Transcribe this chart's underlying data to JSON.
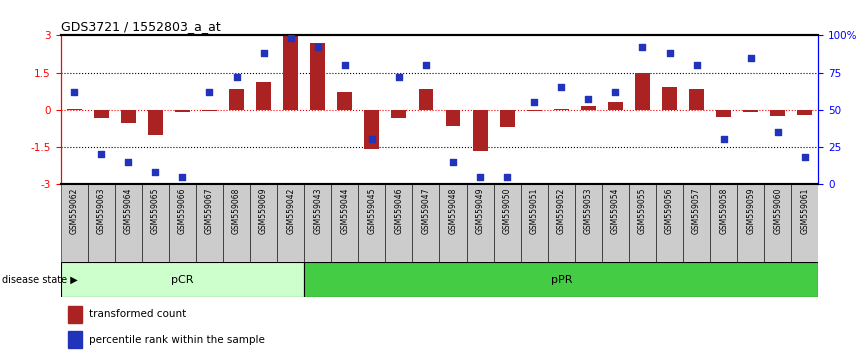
{
  "title": "GDS3721 / 1552803_a_at",
  "samples": [
    "GSM559062",
    "GSM559063",
    "GSM559064",
    "GSM559065",
    "GSM559066",
    "GSM559067",
    "GSM559068",
    "GSM559069",
    "GSM559042",
    "GSM559043",
    "GSM559044",
    "GSM559045",
    "GSM559046",
    "GSM559047",
    "GSM559048",
    "GSM559049",
    "GSM559050",
    "GSM559051",
    "GSM559052",
    "GSM559053",
    "GSM559054",
    "GSM559055",
    "GSM559056",
    "GSM559057",
    "GSM559058",
    "GSM559059",
    "GSM559060",
    "GSM559061"
  ],
  "bar_values": [
    0.05,
    -0.35,
    -0.55,
    -1.0,
    -0.1,
    -0.05,
    0.85,
    1.1,
    3.0,
    2.7,
    0.7,
    -1.6,
    -0.35,
    0.85,
    -0.65,
    -1.65,
    -0.7,
    -0.05,
    0.05,
    0.15,
    0.3,
    1.5,
    0.9,
    0.85,
    -0.3,
    -0.1,
    -0.25,
    -0.2
  ],
  "dot_values": [
    62,
    20,
    15,
    8,
    5,
    62,
    72,
    88,
    98,
    92,
    80,
    30,
    72,
    80,
    15,
    5,
    5,
    55,
    65,
    57,
    62,
    92,
    88,
    80,
    30,
    85,
    35,
    18
  ],
  "pCR_count": 9,
  "pPR_count": 19,
  "ylim": [
    -3,
    3
  ],
  "bar_color": "#aa2222",
  "dot_color": "#2233bb",
  "pCR_color": "#ccffcc",
  "pPR_color": "#44cc44",
  "label_bar": "transformed count",
  "label_dot": "percentile rank within the sample",
  "disease_state_label": "disease state",
  "pCR_label": "pCR",
  "pPR_label": "pPR",
  "sample_box_color": "#cccccc",
  "sample_box_edge": "#888888"
}
